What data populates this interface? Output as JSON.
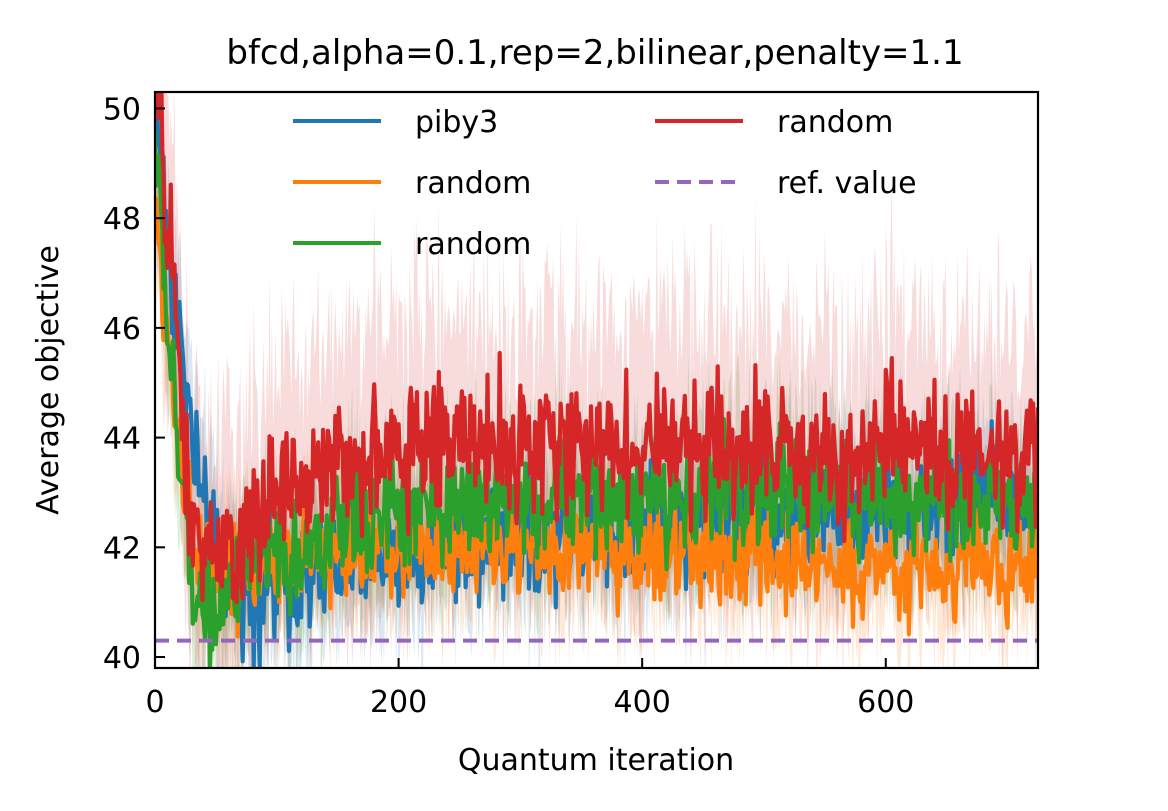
{
  "chart_data": {
    "type": "line",
    "title": "bfcd,alpha=0.1,rep=2,bilinear,penalty=1.1",
    "xlabel": "Quantum iteration",
    "ylabel": "Average objective",
    "xlim": [
      0,
      725
    ],
    "ylim": [
      39.8,
      50.3
    ],
    "xticks": [
      0,
      200,
      400,
      600
    ],
    "yticks": [
      40,
      42,
      44,
      46,
      48,
      50
    ],
    "grid": false,
    "legend_position": "top",
    "series": [
      {
        "name": "piby3",
        "color": "#1f77b4",
        "knots": [
          [
            0,
            50.5
          ],
          [
            5,
            49.0
          ],
          [
            10,
            47.5
          ],
          [
            20,
            46.0
          ],
          [
            30,
            44.0
          ],
          [
            40,
            42.5
          ],
          [
            60,
            41.5
          ],
          [
            80,
            41.3
          ],
          [
            100,
            41.4
          ],
          [
            120,
            41.5
          ],
          [
            150,
            41.6
          ],
          [
            200,
            42.0
          ],
          [
            250,
            42.2
          ],
          [
            300,
            42.3
          ],
          [
            350,
            42.3
          ],
          [
            400,
            42.4
          ],
          [
            450,
            42.5
          ],
          [
            500,
            42.6
          ],
          [
            550,
            42.7
          ],
          [
            600,
            42.8
          ],
          [
            650,
            42.8
          ],
          [
            700,
            42.9
          ],
          [
            725,
            42.9
          ]
        ],
        "noise": 0.55,
        "band": 1.2
      },
      {
        "name": "random",
        "color": "#ff7f0e",
        "knots": [
          [
            0,
            48.0
          ],
          [
            5,
            47.0
          ],
          [
            10,
            46.0
          ],
          [
            20,
            44.0
          ],
          [
            30,
            42.5
          ],
          [
            40,
            41.6
          ],
          [
            60,
            41.4
          ],
          [
            80,
            41.6
          ],
          [
            100,
            41.8
          ],
          [
            150,
            41.9
          ],
          [
            200,
            42.0
          ],
          [
            250,
            42.0
          ],
          [
            300,
            41.9
          ],
          [
            350,
            41.9
          ],
          [
            400,
            41.9
          ],
          [
            450,
            41.8
          ],
          [
            500,
            41.8
          ],
          [
            550,
            41.7
          ],
          [
            600,
            41.6
          ],
          [
            650,
            41.6
          ],
          [
            700,
            41.6
          ],
          [
            725,
            41.7
          ]
        ],
        "noise": 0.45,
        "band": 1.1
      },
      {
        "name": "random",
        "color": "#2ca02c",
        "knots": [
          [
            0,
            49.5
          ],
          [
            5,
            48.0
          ],
          [
            10,
            46.0
          ],
          [
            20,
            43.5
          ],
          [
            30,
            41.5
          ],
          [
            40,
            41.0
          ],
          [
            60,
            41.1
          ],
          [
            80,
            41.4
          ],
          [
            100,
            41.7
          ],
          [
            150,
            42.3
          ],
          [
            200,
            42.7
          ],
          [
            250,
            42.8
          ],
          [
            300,
            42.9
          ],
          [
            350,
            42.9
          ],
          [
            400,
            42.9
          ],
          [
            450,
            43.0
          ],
          [
            500,
            43.1
          ],
          [
            550,
            43.0
          ],
          [
            600,
            42.9
          ],
          [
            650,
            42.9
          ],
          [
            700,
            42.8
          ],
          [
            725,
            42.8
          ]
        ],
        "noise": 0.5,
        "band": 1.2
      },
      {
        "name": "random",
        "color": "#d62728",
        "knots": [
          [
            0,
            50.5
          ],
          [
            5,
            49.5
          ],
          [
            10,
            48.0
          ],
          [
            20,
            45.0
          ],
          [
            30,
            42.5
          ],
          [
            40,
            41.7
          ],
          [
            60,
            41.8
          ],
          [
            80,
            42.3
          ],
          [
            100,
            42.9
          ],
          [
            130,
            43.3
          ],
          [
            160,
            43.7
          ],
          [
            200,
            43.8
          ],
          [
            240,
            44.0
          ],
          [
            280,
            43.9
          ],
          [
            320,
            43.8
          ],
          [
            360,
            43.8
          ],
          [
            400,
            43.9
          ],
          [
            450,
            43.8
          ],
          [
            500,
            43.7
          ],
          [
            550,
            43.7
          ],
          [
            600,
            43.8
          ],
          [
            650,
            43.7
          ],
          [
            700,
            43.7
          ],
          [
            725,
            43.7
          ]
        ],
        "noise": 0.6,
        "band": 2.2
      }
    ],
    "reference": {
      "name": "ref. value",
      "color": "#9467bd",
      "value": 40.3,
      "style": "dashed"
    }
  }
}
